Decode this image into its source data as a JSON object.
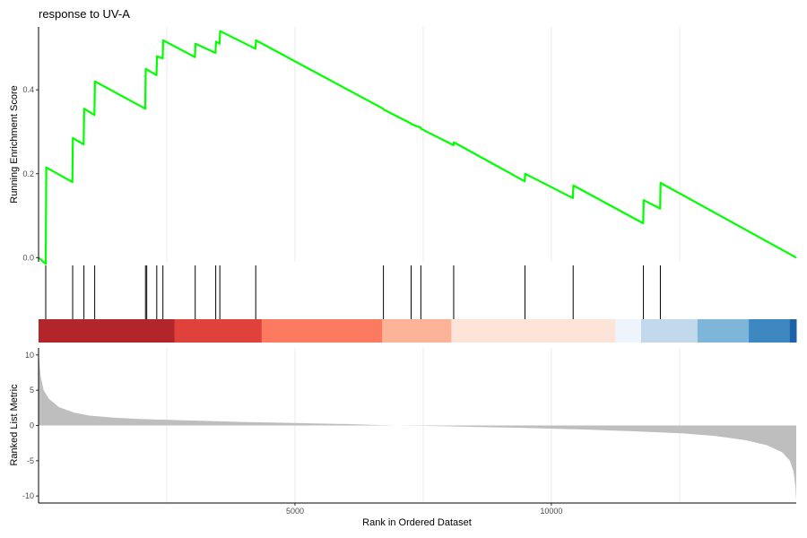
{
  "chart_data": {
    "type": "line",
    "title": "response to UV-A",
    "x_range": [
      0,
      14775
    ],
    "x_ticks": [
      5000,
      10000
    ],
    "x_label": "Rank in Ordered Dataset",
    "running_score": {
      "ylabel": "Running Enrichment Score",
      "ylim": [
        -0.01,
        0.55
      ],
      "y_ticks": [
        0.0,
        0.2,
        0.4
      ],
      "line_color": "#00ff00",
      "points": [
        [
          0,
          0.0
        ],
        [
          140,
          -0.015
        ],
        [
          150,
          0.215
        ],
        [
          660,
          0.18
        ],
        [
          670,
          0.285
        ],
        [
          880,
          0.27
        ],
        [
          890,
          0.355
        ],
        [
          1090,
          0.34
        ],
        [
          1100,
          0.42
        ],
        [
          2080,
          0.355
        ],
        [
          2090,
          0.45
        ],
        [
          2300,
          0.435
        ],
        [
          2310,
          0.48
        ],
        [
          2420,
          0.475
        ],
        [
          2430,
          0.518
        ],
        [
          3050,
          0.478
        ],
        [
          3060,
          0.51
        ],
        [
          3450,
          0.488
        ],
        [
          3460,
          0.515
        ],
        [
          3530,
          0.51
        ],
        [
          3540,
          0.54
        ],
        [
          4230,
          0.498
        ],
        [
          4240,
          0.518
        ],
        [
          6720,
          0.355
        ],
        [
          6730,
          0.353
        ],
        [
          7260,
          0.32
        ],
        [
          7270,
          0.318
        ],
        [
          7450,
          0.31
        ],
        [
          7460,
          0.307
        ],
        [
          8090,
          0.268
        ],
        [
          8100,
          0.275
        ],
        [
          9480,
          0.182
        ],
        [
          9490,
          0.2
        ],
        [
          10420,
          0.142
        ],
        [
          10430,
          0.172
        ],
        [
          11790,
          0.082
        ],
        [
          11800,
          0.137
        ],
        [
          12120,
          0.117
        ],
        [
          12130,
          0.178
        ],
        [
          14775,
          0.0
        ]
      ]
    },
    "hits": [
      140,
      665,
      885,
      1095,
      2085,
      2110,
      2305,
      2425,
      3055,
      3455,
      3535,
      4235,
      6725,
      7265,
      7455,
      8095,
      9485,
      10425,
      11795,
      12125
    ],
    "color_bar": [
      {
        "start": 0,
        "end": 2650,
        "color": "#b2262b"
      },
      {
        "start": 2650,
        "end": 4350,
        "color": "#e0413b"
      },
      {
        "start": 4350,
        "end": 6700,
        "color": "#fb7a60"
      },
      {
        "start": 6700,
        "end": 8050,
        "color": "#fcb498"
      },
      {
        "start": 8050,
        "end": 11250,
        "color": "#fde4d8"
      },
      {
        "start": 11250,
        "end": 11750,
        "color": "#eef4fb"
      },
      {
        "start": 11750,
        "end": 12850,
        "color": "#c1d9ea"
      },
      {
        "start": 12850,
        "end": 13850,
        "color": "#7db6d9"
      },
      {
        "start": 13850,
        "end": 14650,
        "color": "#3e88c2"
      },
      {
        "start": 14650,
        "end": 14775,
        "color": "#1d62a8"
      }
    ],
    "ranked_metric": {
      "ylabel": "Ranked List Metric",
      "ylim": [
        -11,
        11
      ],
      "y_ticks": [
        10,
        5,
        0,
        -5,
        -10
      ],
      "fill_color": "#bebebe",
      "profile": [
        [
          0,
          10.5
        ],
        [
          40,
          7.0
        ],
        [
          100,
          5.0
        ],
        [
          200,
          3.8
        ],
        [
          400,
          2.6
        ],
        [
          700,
          1.8
        ],
        [
          1000,
          1.4
        ],
        [
          1500,
          1.1
        ],
        [
          2000,
          0.9
        ],
        [
          3000,
          0.7
        ],
        [
          4000,
          0.5
        ],
        [
          5000,
          0.35
        ],
        [
          6000,
          0.2
        ],
        [
          6700,
          0.05
        ],
        [
          7000,
          0.0
        ],
        [
          7500,
          -0.05
        ],
        [
          8500,
          -0.2
        ],
        [
          9500,
          -0.35
        ],
        [
          10500,
          -0.55
        ],
        [
          11500,
          -0.8
        ],
        [
          12500,
          -1.1
        ],
        [
          13200,
          -1.5
        ],
        [
          13800,
          -2.1
        ],
        [
          14200,
          -2.8
        ],
        [
          14500,
          -3.8
        ],
        [
          14650,
          -5.0
        ],
        [
          14720,
          -6.5
        ],
        [
          14760,
          -8.5
        ],
        [
          14775,
          -10.8
        ]
      ]
    }
  }
}
